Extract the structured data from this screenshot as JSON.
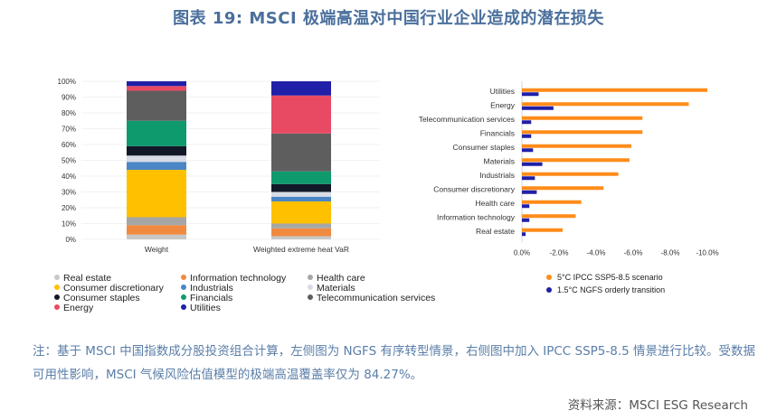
{
  "title": "图表 19: MSCI 极端高温对中国行业企业造成的潜在损失",
  "note": "注：基于 MSCI 中国指数成分股投资组合计算，左侧图为 NGFS 有序转型情景，右侧图中加入 IPCC SSP5-8.5 情景进行比较。受数据可用性影响，MSCI 气候风险估值模型的极端高温覆盖率仅为 84.27%。",
  "source": "资料来源：MSCI ESG Research",
  "colors": {
    "Real estate": "#c8c8c8",
    "Information technology": "#f08a40",
    "Health care": "#a6a6a6",
    "Consumer discretionary": "#ffc000",
    "Industrials": "#4a86c5",
    "Materials": "#d6dbe6",
    "Consumer staples": "#111827",
    "Financials": "#0f9a6d",
    "Telecommunication services": "#5e5e5e",
    "Energy": "#e84a64",
    "Utilities": "#1f1fa8",
    "ssp585": "#ff8c1a",
    "ngfs": "#1f1fa8"
  },
  "legend_left": [
    "Real estate",
    "Information technology",
    "Health care",
    "Consumer discretionary",
    "Industrials",
    "Materials",
    "Consumer staples",
    "Financials",
    "Telecommunication services",
    "Energy",
    "Utilities"
  ],
  "legend_right": [
    {
      "key": "ssp585",
      "label": "5°C IPCC SSP5-8.5 scenario"
    },
    {
      "key": "ngfs",
      "label": "1.5°C NGFS orderly transition"
    }
  ],
  "chart_data": [
    {
      "type": "bar",
      "stacked": true,
      "categories": [
        "Weight",
        "Weighted extreme heat VaR"
      ],
      "ylim": [
        0,
        100
      ],
      "y_ticks": [
        "0%",
        "10%",
        "20%",
        "30%",
        "40%",
        "50%",
        "60%",
        "70%",
        "80%",
        "90%",
        "100%"
      ],
      "series": [
        {
          "name": "Real estate",
          "values": [
            3,
            2
          ]
        },
        {
          "name": "Information technology",
          "values": [
            6,
            5
          ]
        },
        {
          "name": "Health care",
          "values": [
            5,
            3
          ]
        },
        {
          "name": "Consumer discretionary",
          "values": [
            30,
            14
          ]
        },
        {
          "name": "Industrials",
          "values": [
            5,
            3
          ]
        },
        {
          "name": "Materials",
          "values": [
            4,
            3
          ]
        },
        {
          "name": "Consumer staples",
          "values": [
            6,
            5
          ]
        },
        {
          "name": "Financials",
          "values": [
            16,
            8
          ]
        },
        {
          "name": "Telecommunication services",
          "values": [
            19,
            24
          ]
        },
        {
          "name": "Energy",
          "values": [
            3,
            24
          ]
        },
        {
          "name": "Utilities",
          "values": [
            3,
            9
          ]
        }
      ]
    },
    {
      "type": "bar",
      "orientation": "horizontal",
      "categories": [
        "Utilities",
        "Energy",
        "Telecommunication services",
        "Financials",
        "Consumer staples",
        "Materials",
        "Industrials",
        "Consumer discretionary",
        "Health care",
        "Information technology",
        "Real estate"
      ],
      "xlim": [
        0,
        -10
      ],
      "x_ticks": [
        "0.0%",
        "-2.0%",
        "-4.0%",
        "-6.0%",
        "-8.0%",
        "-10.0%"
      ],
      "series": [
        {
          "name": "5°C IPCC SSP5-8.5 scenario",
          "key": "ssp585",
          "values": [
            -10.0,
            -9.0,
            -6.5,
            -6.5,
            -5.9,
            -5.8,
            -5.2,
            -4.4,
            -3.2,
            -2.9,
            -2.2
          ]
        },
        {
          "name": "1.5°C NGFS orderly transition",
          "key": "ngfs",
          "values": [
            -0.9,
            -1.7,
            -0.5,
            -0.5,
            -0.6,
            -1.1,
            -0.7,
            -0.8,
            -0.4,
            -0.4,
            -0.2
          ]
        }
      ]
    }
  ]
}
